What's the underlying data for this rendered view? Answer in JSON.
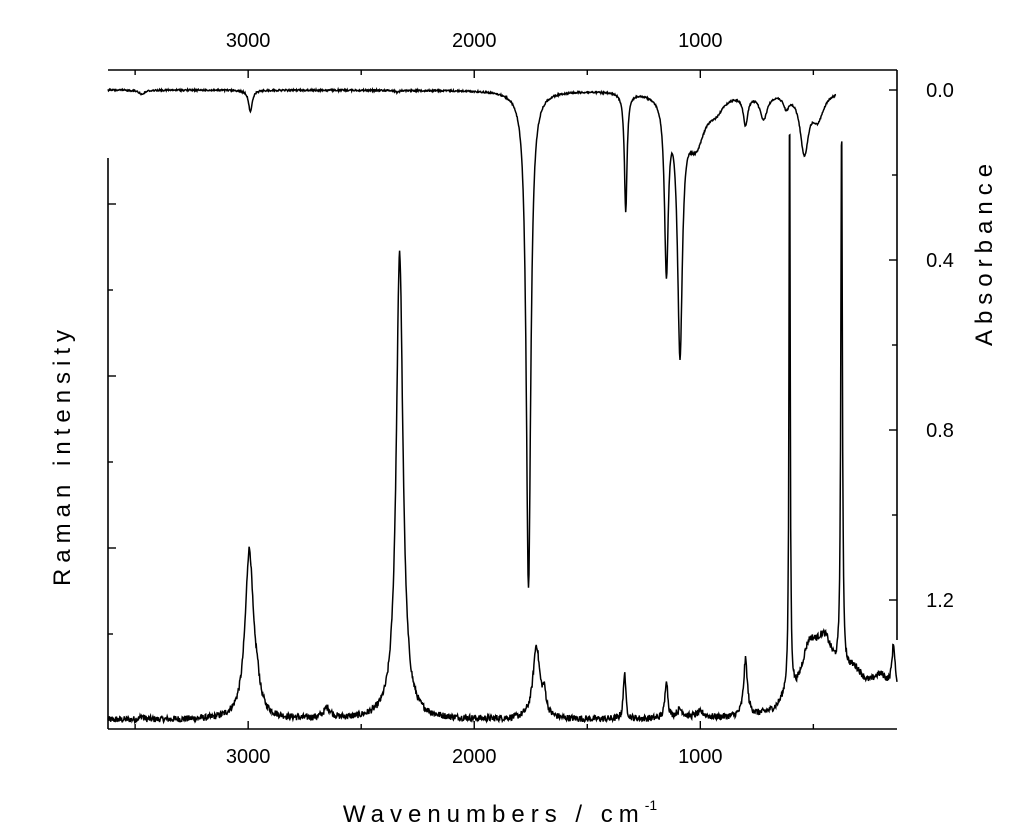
{
  "chart_data": [
    {
      "type": "line",
      "panel": "raman",
      "title": "",
      "xlabel": "Wavenumbers / cm",
      "xlabel_superscript": "-1",
      "ylabel": "Raman intensity",
      "x_reversed": true,
      "xlim": [
        3620,
        130
      ],
      "ylim": [
        0,
        100
      ],
      "xticks": [
        "3000",
        "2000",
        "1000"
      ],
      "xtick_values": [
        3000,
        2000,
        1000
      ],
      "yticks_labeled": false,
      "grid": false,
      "series": [
        {
          "peaks": [
            {
              "x": 3470,
              "y": 0.6,
              "w": 10
            },
            {
              "x": 2995,
              "y": 30.0,
              "w": 22
            },
            {
              "x": 2960,
              "y": 3.0,
              "w": 14
            },
            {
              "x": 2650,
              "y": 1.8,
              "w": 20
            },
            {
              "x": 2330,
              "y": 83.0,
              "w": 18
            },
            {
              "x": 1725,
              "y": 13.0,
              "w": 18
            },
            {
              "x": 1690,
              "y": 3.5,
              "w": 10
            },
            {
              "x": 1335,
              "y": 8.5,
              "w": 6
            },
            {
              "x": 1150,
              "y": 7.0,
              "w": 7
            },
            {
              "x": 1090,
              "y": 1.5,
              "w": 18
            },
            {
              "x": 1000,
              "y": 1.0,
              "w": 25
            },
            {
              "x": 800,
              "y": 10.0,
              "w": 10
            },
            {
              "x": 620,
              "y": 2.0,
              "w": 28
            },
            {
              "x": 605,
              "y": 110.0,
              "w": 3
            },
            {
              "x": 520,
              "y": 9.0,
              "w": 45
            },
            {
              "x": 450,
              "y": 11.0,
              "w": 55
            },
            {
              "x": 375,
              "y": 100.0,
              "w": 4
            },
            {
              "x": 320,
              "y": 6.0,
              "w": 60
            },
            {
              "x": 200,
              "y": 6.0,
              "w": 60
            },
            {
              "x": 145,
              "y": 9.0,
              "w": 10
            }
          ],
          "noise_amplitude": 0.6
        }
      ]
    },
    {
      "type": "line",
      "panel": "ir",
      "title": "",
      "xlabel": "",
      "ylabel": "Absorbance",
      "x_reversed": true,
      "xlim": [
        3620,
        130
      ],
      "ylim": [
        0.0,
        1.35
      ],
      "xticks": [
        "3000",
        "2000",
        "1000"
      ],
      "xtick_values": [
        3000,
        2000,
        1000
      ],
      "yticks": [
        "0.0",
        "0.4",
        "0.8",
        "1.2"
      ],
      "ytick_values": [
        0.0,
        0.4,
        0.8,
        1.2
      ],
      "grid": false,
      "series": [
        {
          "x_range": [
            3620,
            400
          ],
          "bands": [
            {
              "x": 3470,
              "a": 0.01,
              "w": 15
            },
            {
              "x": 2990,
              "a": 0.05,
              "w": 10
            },
            {
              "x": 2340,
              "a": 0.005,
              "w": 8
            },
            {
              "x": 1760,
              "a": 1.17,
              "w": 12
            },
            {
              "x": 1330,
              "a": 0.28,
              "w": 7
            },
            {
              "x": 1150,
              "a": 0.4,
              "w": 10
            },
            {
              "x": 1090,
              "a": 0.58,
              "w": 13
            },
            {
              "x": 1020,
              "a": 0.12,
              "w": 50
            },
            {
              "x": 930,
              "a": 0.03,
              "w": 40
            },
            {
              "x": 800,
              "a": 0.07,
              "w": 12
            },
            {
              "x": 720,
              "a": 0.06,
              "w": 20
            },
            {
              "x": 620,
              "a": 0.03,
              "w": 15
            },
            {
              "x": 540,
              "a": 0.14,
              "w": 22
            },
            {
              "x": 480,
              "a": 0.06,
              "w": 30
            }
          ]
        }
      ]
    }
  ]
}
